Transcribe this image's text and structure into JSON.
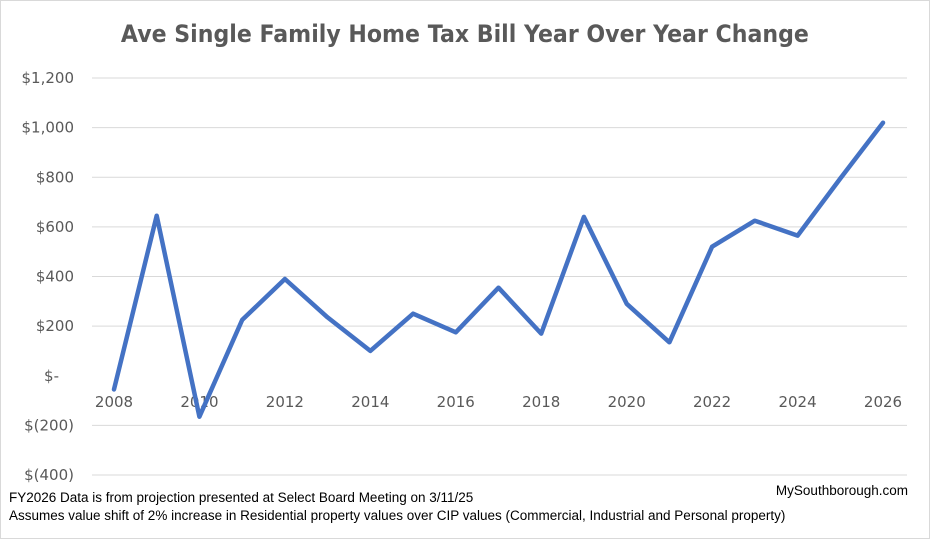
{
  "chart_data": {
    "type": "line",
    "title": "Ave Single Family Home Tax Bill Year Over Year Change",
    "xlabel": "",
    "ylabel": "",
    "x": [
      2008,
      2009,
      2010,
      2011,
      2012,
      2013,
      2014,
      2015,
      2016,
      2017,
      2018,
      2019,
      2020,
      2021,
      2022,
      2023,
      2024,
      2025,
      2026
    ],
    "series": [
      {
        "values": [
          -55,
          645,
          -165,
          225,
          390,
          235,
          100,
          250,
          175,
          355,
          170,
          640,
          290,
          135,
          520,
          625,
          565,
          795,
          1020
        ],
        "color": "#4472c4"
      }
    ],
    "ylim": [
      -400,
      1200
    ],
    "yticks": [
      -400,
      -200,
      0,
      200,
      400,
      600,
      800,
      1000,
      1200
    ],
    "ytick_labels": [
      "$(400)",
      "$(200)",
      "$-",
      "$200",
      "$400",
      "$600",
      "$800",
      "$1,000",
      "$1,200"
    ],
    "xticks": [
      2008,
      2010,
      2012,
      2014,
      2016,
      2018,
      2020,
      2022,
      2024,
      2026
    ],
    "grid": true,
    "gridline_color": "#d9d9d9"
  },
  "notes": {
    "line1": "FY2026 Data is from projection presented at Select Board Meeting on 3/11/25",
    "line2": "Assumes value shift of 2% increase in Residential property values over CIP values (Commercial, Industrial and Personal property)",
    "credit": "MySouthborough.com"
  }
}
